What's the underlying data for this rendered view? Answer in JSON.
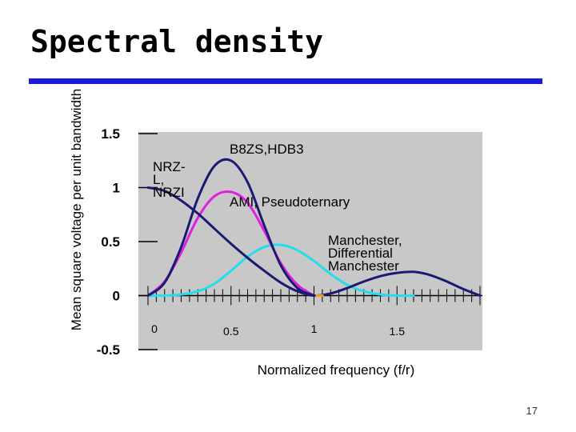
{
  "page_number": "17",
  "chart_data": {
    "type": "line",
    "title": "Spectral density",
    "xlabel": "Normalized frequency (f/r)",
    "ylabel": "Mean square voltage per unit bandwidth",
    "xlim": [
      0,
      2
    ],
    "ylim": [
      -0.5,
      1.5
    ],
    "y_ticks": [
      "1.5",
      "1",
      "0.5",
      "0",
      "-0.5"
    ],
    "x_ticks": [
      "0",
      "0.5",
      "1",
      "1.5"
    ],
    "grid": false,
    "series": [
      {
        "name": "NRZ-L, NRZI",
        "color": "#1a1a72",
        "x": [
          0,
          0.1,
          0.2,
          0.3,
          0.4,
          0.5,
          0.6,
          0.7,
          0.8,
          0.9,
          1.0,
          1.1,
          1.2,
          1.3,
          1.4,
          1.5,
          1.6,
          1.7,
          1.8,
          1.9,
          2.0
        ],
        "values": [
          1.0,
          0.97,
          0.88,
          0.76,
          0.62,
          0.48,
          0.35,
          0.23,
          0.12,
          0.04,
          0.0,
          0.02,
          0.07,
          0.13,
          0.18,
          0.21,
          0.22,
          0.19,
          0.13,
          0.06,
          0.0
        ]
      },
      {
        "name": "B8ZS, HDB3",
        "color": "#1a1a72",
        "x": [
          0,
          0.1,
          0.2,
          0.3,
          0.4,
          0.5,
          0.6,
          0.7,
          0.8,
          0.9,
          1.0
        ],
        "values": [
          0.0,
          0.12,
          0.45,
          0.9,
          1.2,
          1.25,
          1.05,
          0.65,
          0.28,
          0.07,
          0.0
        ]
      },
      {
        "name": "AMI, Pseudoternary",
        "color": "#e020e0",
        "x": [
          0,
          0.1,
          0.2,
          0.3,
          0.4,
          0.5,
          0.6,
          0.7,
          0.8,
          0.9,
          1.0
        ],
        "values": [
          0.0,
          0.13,
          0.4,
          0.72,
          0.92,
          0.96,
          0.86,
          0.6,
          0.3,
          0.1,
          0.0
        ]
      },
      {
        "name": "Manchester, Differential Manchester",
        "color": "#22ddee",
        "x": [
          0,
          0.1,
          0.2,
          0.3,
          0.4,
          0.5,
          0.6,
          0.7,
          0.8,
          0.9,
          1.0,
          1.1,
          1.2,
          1.3,
          1.4,
          1.5,
          1.6
        ],
        "values": [
          0.0,
          0.0,
          0.01,
          0.04,
          0.11,
          0.23,
          0.36,
          0.45,
          0.47,
          0.42,
          0.32,
          0.2,
          0.1,
          0.04,
          0.01,
          0.0,
          0.0
        ]
      }
    ],
    "annotations": [
      {
        "text_lines": [
          "NRZ-",
          "L,",
          "NRZI"
        ]
      },
      {
        "text_lines": [
          "B8ZS,HDB3"
        ]
      },
      {
        "text_lines": [
          "AMI, Pseudoternary"
        ]
      },
      {
        "text_lines": [
          "Manchester,",
          "Differential",
          "Manchester"
        ]
      }
    ]
  }
}
